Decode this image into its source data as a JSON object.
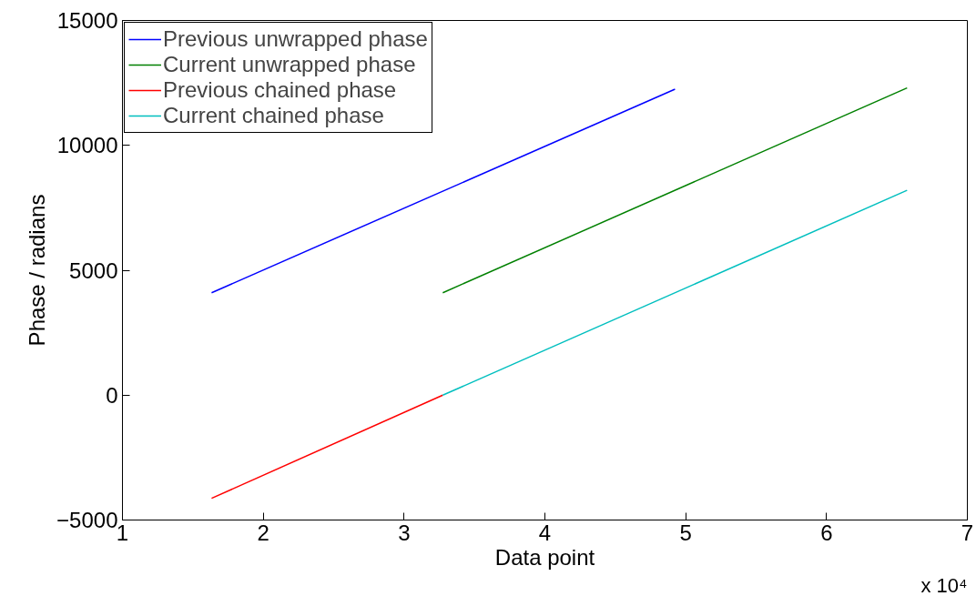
{
  "chart_data": {
    "type": "line",
    "xlabel": "Data point",
    "ylabel": "Phase / radians",
    "xlim": [
      1,
      7
    ],
    "xticks": [
      1,
      2,
      3,
      4,
      5,
      6,
      7
    ],
    "ylim": [
      -5000,
      15000
    ],
    "yticks": [
      {
        "value": -5000,
        "label": "−5000"
      },
      0,
      5000,
      10000,
      15000
    ],
    "annotations": [
      "x 10⁴"
    ],
    "legend": "top left",
    "grid": false,
    "line_style": "solid",
    "series": [
      {
        "name": "Previous unwrapped phase",
        "color": "#0000ff",
        "x": [
          1.633,
          4.924
        ],
        "values": [
          4100,
          12250
        ]
      },
      {
        "name": "Current unwrapped phase",
        "color": "#008000",
        "x": [
          3.275,
          6.572
        ],
        "values": [
          4100,
          12300
        ]
      },
      {
        "name": "Previous chained phase",
        "color": "#ff0000",
        "x": [
          1.633,
          3.275
        ],
        "values": [
          -4130,
          0
        ]
      },
      {
        "name": "Current chained phase",
        "color": "#00bfbf",
        "x": [
          3.275,
          6.572
        ],
        "values": [
          0,
          8200
        ]
      }
    ]
  }
}
